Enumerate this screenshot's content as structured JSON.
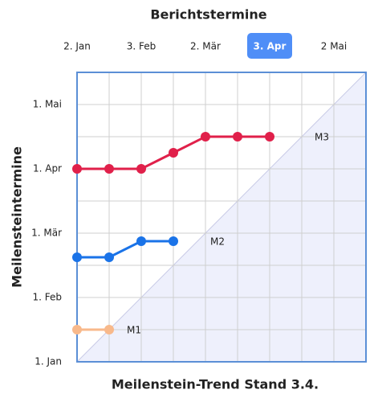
{
  "chart_data": {
    "type": "line",
    "title": "Meilenstein-Trend Stand 3.4.",
    "xlabel": "Berichtstermine",
    "ylabel": "Meilensteintermine",
    "x": [
      0,
      1,
      2,
      3,
      4,
      5,
      6
    ],
    "xlim": [
      0,
      9
    ],
    "ylim": [
      0,
      9
    ],
    "xticks": [
      {
        "value": 0,
        "label": "2. Jan"
      },
      {
        "value": 2,
        "label": "3. Feb"
      },
      {
        "value": 4,
        "label": "2. Mär"
      },
      {
        "value": 6,
        "label": "3. Apr"
      },
      {
        "value": 8,
        "label": "2 Mai"
      }
    ],
    "yticks": [
      {
        "value": 0,
        "label": "1. Jan"
      },
      {
        "value": 2,
        "label": "1. Feb"
      },
      {
        "value": 4,
        "label": "1. Mär"
      },
      {
        "value": 6,
        "label": "1. Apr"
      },
      {
        "value": 8,
        "label": "1. Mai"
      }
    ],
    "selected_xtick": 3,
    "grid": true,
    "series": [
      {
        "name": "M1",
        "color": "#f8b98b",
        "values": [
          1,
          1,
          null,
          null,
          null,
          null,
          null
        ]
      },
      {
        "name": "M2",
        "color": "#1a73e8",
        "values": [
          3.25,
          3.25,
          3.75,
          3.75,
          null,
          null,
          null
        ]
      },
      {
        "name": "M3",
        "color": "#e0204a",
        "values": [
          6,
          6,
          6,
          6.5,
          7,
          7,
          7
        ]
      }
    ]
  }
}
